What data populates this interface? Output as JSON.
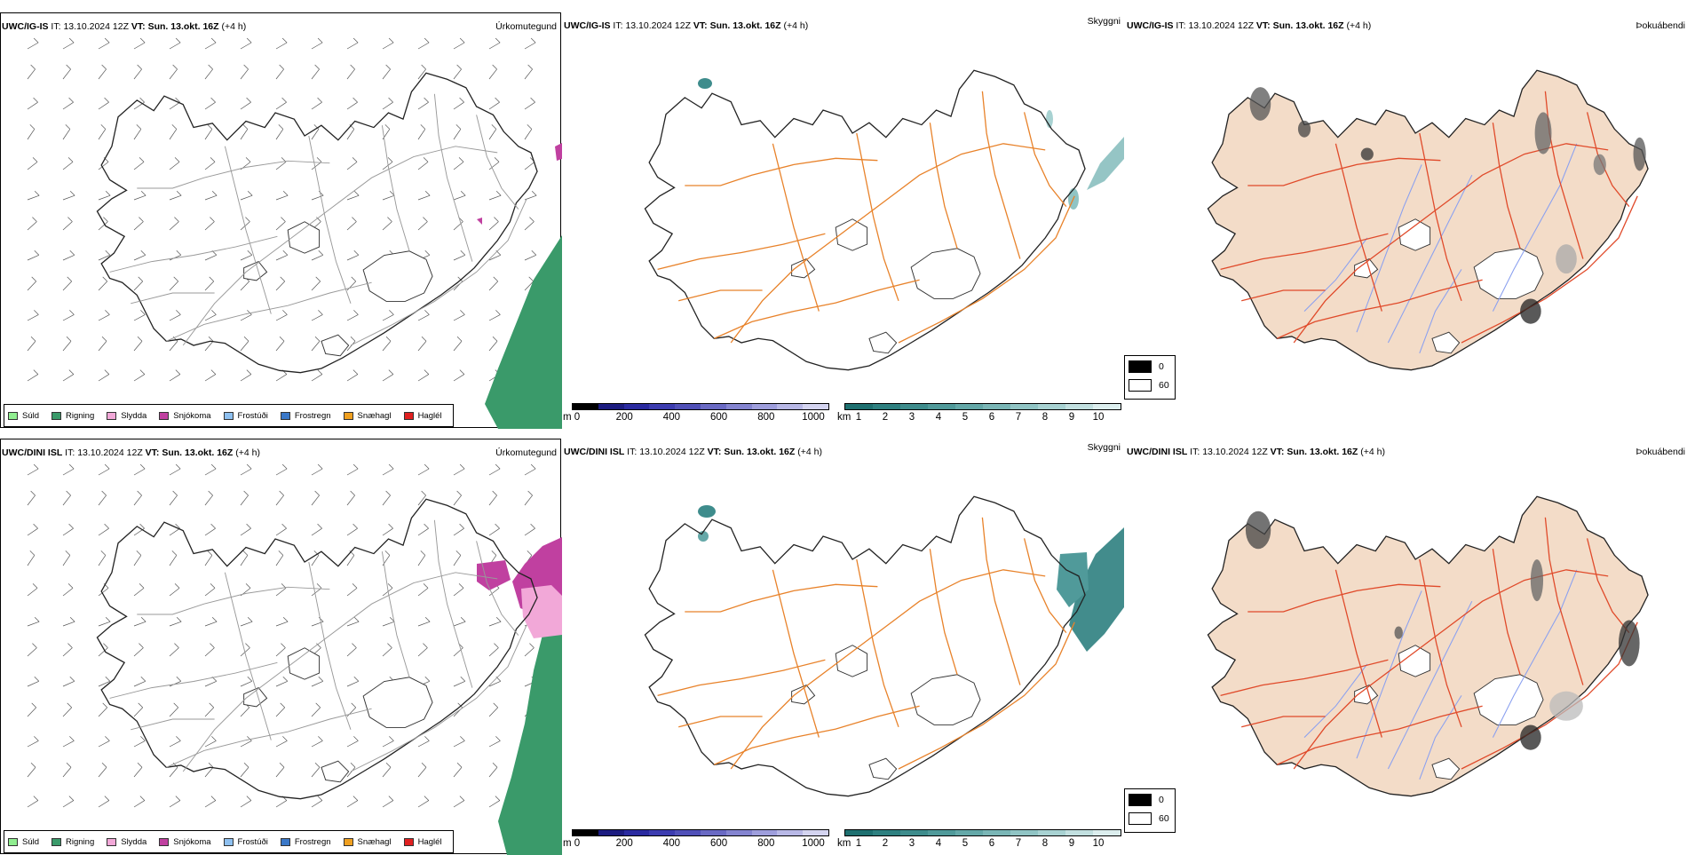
{
  "rows": [
    {
      "model": "UWC/IG-IS",
      "it_label": "IT:",
      "it": "13.10.2024 12Z",
      "vt_label": "VT:",
      "vt": "Sun. 13.okt. 16Z",
      "lead": "(+4 h)"
    },
    {
      "model": "UWC/DINI ISL",
      "it_label": "IT:",
      "it": "13.10.2024 12Z",
      "vt_label": "VT:",
      "vt": "Sun. 13.okt. 16Z",
      "lead": "(+4 h)"
    }
  ],
  "panels": {
    "precip_type": "Úrkomutegund",
    "visibility": "Skyggni",
    "fog": "Þokuábendi"
  },
  "precip_legend": [
    {
      "label": "Súld",
      "color": "#90ee90"
    },
    {
      "label": "Rigning",
      "color": "#3a9a6a"
    },
    {
      "label": "Slydda",
      "color": "#f2a8d8"
    },
    {
      "label": "Snjókoma",
      "color": "#c040a0"
    },
    {
      "label": "Frostúði",
      "color": "#8ec0f0"
    },
    {
      "label": "Frostregn",
      "color": "#3a78c8"
    },
    {
      "label": "Snæhagl",
      "color": "#f0a020"
    },
    {
      "label": "Haglél",
      "color": "#e02020"
    }
  ],
  "elevation_scale": {
    "unit": "m",
    "ticks": [
      "0",
      "200",
      "400",
      "600",
      "800",
      "1000"
    ],
    "colors": [
      "#000000",
      "#1c1c80",
      "#2a2aa0",
      "#3c3cb0",
      "#5050b8",
      "#6a6ac4",
      "#8484d0",
      "#9e9edc",
      "#b8b8e6",
      "#d4d4f0"
    ]
  },
  "visibility_scale": {
    "unit": "km",
    "ticks": [
      "1",
      "2",
      "3",
      "4",
      "5",
      "6",
      "7",
      "8",
      "9",
      "10"
    ],
    "colors": [
      "#1e7070",
      "#2e8080",
      "#3e8c8c",
      "#509a9a",
      "#64a8a8",
      "#7ab6b6",
      "#90c4c4",
      "#a8d2d2",
      "#c2e0e0",
      "#dceeee"
    ]
  },
  "fog_legend": [
    {
      "label": "0",
      "color": "#000000"
    },
    {
      "label": "60",
      "color": "#ffffff"
    }
  ],
  "colors": {
    "rain_sea": "#3a9a6a",
    "snow": "#c040a0",
    "sleet": "#f2a8d8",
    "roads": "#e8822a",
    "fog_land": "#f3dcc8",
    "fog_roads": "#e04a2a",
    "rivers": "#8aa0f0",
    "coast": "#222222"
  }
}
